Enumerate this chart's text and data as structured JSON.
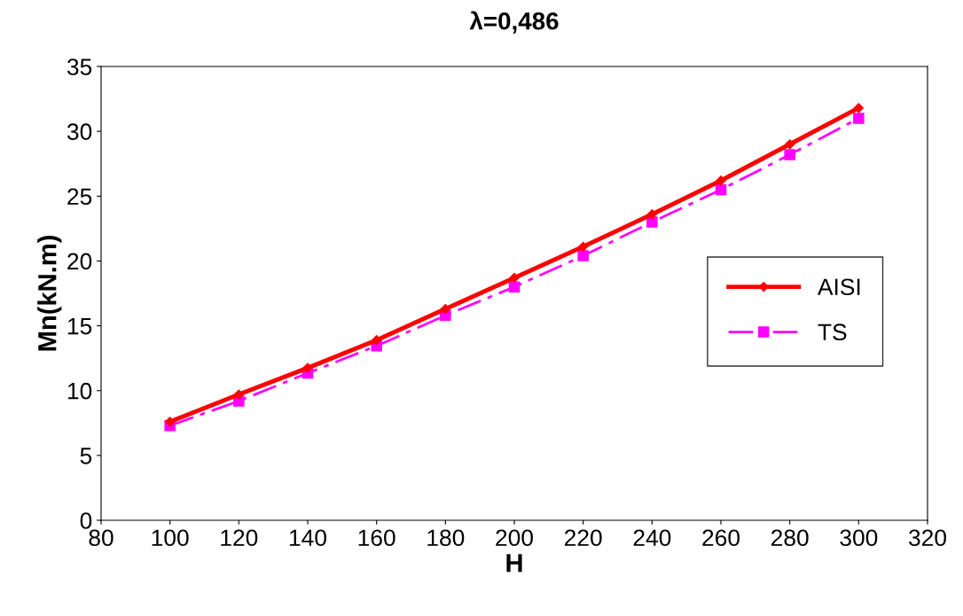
{
  "chart_data": {
    "type": "line",
    "title": "λ=0,486",
    "xlabel": "H",
    "ylabel": "Mn(kN.m)",
    "x": [
      100,
      120,
      140,
      160,
      180,
      200,
      220,
      240,
      260,
      280,
      300
    ],
    "series": [
      {
        "name": "AISI",
        "color": "#ff0000",
        "marker": "diamond",
        "line_style": "solid",
        "values": [
          7.6,
          9.7,
          11.75,
          13.9,
          16.3,
          18.7,
          21.1,
          23.6,
          26.2,
          29.0,
          31.8
        ]
      },
      {
        "name": "TS",
        "color": "#ff00ff",
        "marker": "square",
        "line_style": "dashdot",
        "values": [
          7.3,
          9.2,
          11.35,
          13.45,
          15.8,
          18.0,
          20.4,
          23.0,
          25.5,
          28.2,
          31.0
        ]
      }
    ],
    "xlim": [
      80,
      320
    ],
    "xticks": [
      80,
      100,
      120,
      140,
      160,
      180,
      200,
      220,
      240,
      260,
      280,
      300,
      320
    ],
    "ylim": [
      0,
      35
    ],
    "yticks": [
      0,
      5,
      10,
      15,
      20,
      25,
      30,
      35
    ],
    "grid": false,
    "legend": "center right"
  }
}
